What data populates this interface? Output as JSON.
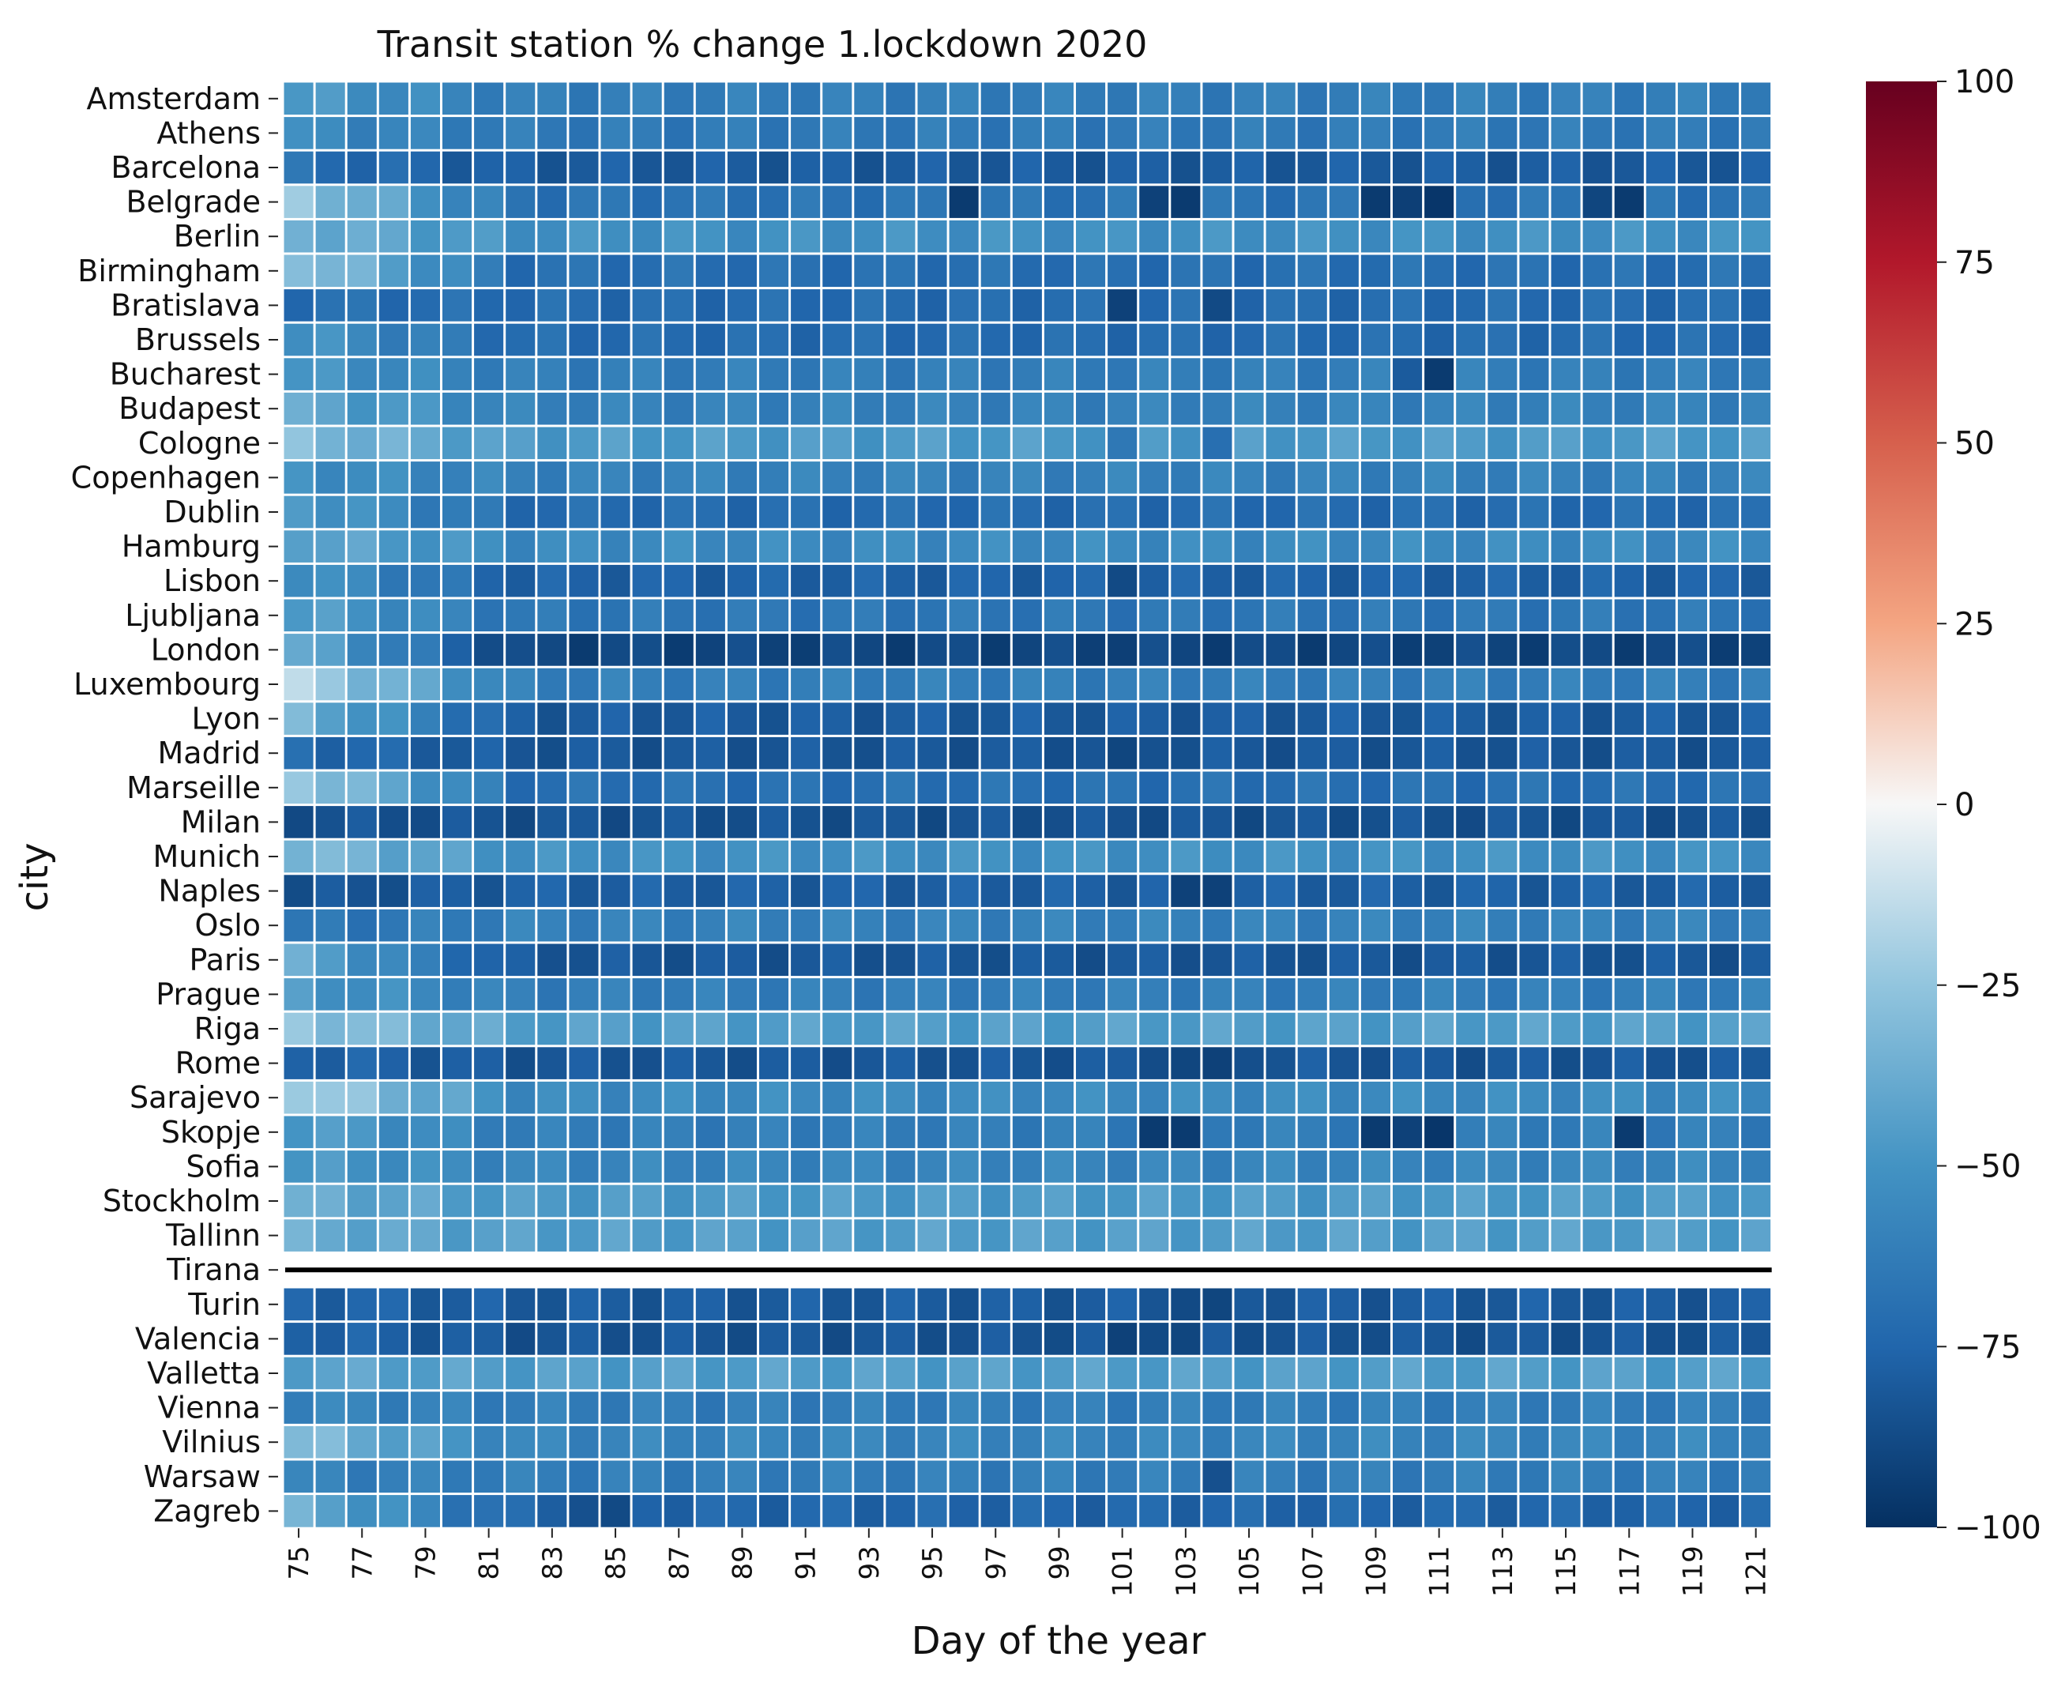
{
  "chart_data": {
    "type": "heatmap",
    "title": "Transit station % change 1.lockdown 2020",
    "xlabel": "Day of the year",
    "ylabel": "city",
    "days": [
      75,
      76,
      77,
      78,
      79,
      80,
      81,
      82,
      83,
      84,
      85,
      86,
      87,
      88,
      89,
      90,
      91,
      92,
      93,
      94,
      95,
      96,
      97,
      98,
      99,
      100,
      101,
      102,
      103,
      104,
      105,
      106,
      107,
      108,
      109,
      110,
      111,
      112,
      113,
      114,
      115,
      116,
      117,
      118,
      119,
      120,
      121
    ],
    "x_tick_labels": [
      "75",
      "77",
      "79",
      "81",
      "83",
      "85",
      "87",
      "89",
      "91",
      "93",
      "95",
      "97",
      "99",
      "101",
      "103",
      "105",
      "107",
      "109",
      "111",
      "113",
      "115",
      "117",
      "119",
      "121"
    ],
    "colorbar": {
      "min": -100,
      "max": 100,
      "ticks": [
        "100",
        "75",
        "50",
        "25",
        "0",
        "−25",
        "−50",
        "−75",
        "−100"
      ],
      "colormap": "RdBu_r"
    },
    "cities": [
      {
        "name": "Amsterdam",
        "base": -62,
        "start": -48
      },
      {
        "name": "Athens",
        "base": -64,
        "start": -55
      },
      {
        "name": "Barcelona",
        "base": -80,
        "start": -70
      },
      {
        "name": "Belgrade",
        "base": -68,
        "start": -25,
        "dips": {
          "96": -95,
          "102": -92,
          "103": -95,
          "109": -95,
          "110": -93,
          "111": -97,
          "116": -90,
          "117": -95
        }
      },
      {
        "name": "Berlin",
        "base": -52,
        "start": -35
      },
      {
        "name": "Birmingham",
        "base": -70,
        "start": -25
      },
      {
        "name": "Bratislava",
        "base": -72,
        "start": -70,
        "dips": {
          "101": -92,
          "104": -88
        }
      },
      {
        "name": "Brussels",
        "base": -72,
        "start": -50
      },
      {
        "name": "Bucharest",
        "base": -62,
        "start": -50,
        "dips": {
          "110": -80,
          "111": -95
        }
      },
      {
        "name": "Budapest",
        "base": -60,
        "start": -40
      },
      {
        "name": "Cologne",
        "base": -47,
        "start": -30,
        "dips": {
          "101": -65,
          "104": -70
        }
      },
      {
        "name": "Copenhagen",
        "base": -60,
        "start": -52
      },
      {
        "name": "Dublin",
        "base": -72,
        "start": -45
      },
      {
        "name": "Hamburg",
        "base": -55,
        "start": -40
      },
      {
        "name": "Lisbon",
        "base": -77,
        "start": -50,
        "dips": {
          "101": -88
        }
      },
      {
        "name": "Ljubljana",
        "base": -66,
        "start": -45
      },
      {
        "name": "London",
        "base": -90,
        "start": -40
      },
      {
        "name": "Luxembourg",
        "base": -62,
        "start": -18
      },
      {
        "name": "Lyon",
        "base": -80,
        "start": -35
      },
      {
        "name": "Madrid",
        "base": -82,
        "start": -72,
        "dips": {
          "101": -90
        }
      },
      {
        "name": "Marseille",
        "base": -70,
        "start": -22
      },
      {
        "name": "Milan",
        "base": -84,
        "start": -84
      },
      {
        "name": "Munich",
        "base": -52,
        "start": -30
      },
      {
        "name": "Naples",
        "base": -78,
        "start": -85,
        "dips": {
          "103": -92,
          "104": -92
        }
      },
      {
        "name": "Oslo",
        "base": -60,
        "start": -68
      },
      {
        "name": "Paris",
        "base": -82,
        "start": -40
      },
      {
        "name": "Prague",
        "base": -62,
        "start": -48
      },
      {
        "name": "Riga",
        "base": -45,
        "start": -25
      },
      {
        "name": "Rome",
        "base": -82,
        "start": -75,
        "dips": {
          "103": -90,
          "104": -92
        }
      },
      {
        "name": "Sarajevo",
        "base": -55,
        "start": -18
      },
      {
        "name": "Skopje",
        "base": -62,
        "start": -45,
        "dips": {
          "102": -95,
          "103": -95,
          "109": -95,
          "110": -92,
          "111": -97,
          "117": -95
        }
      },
      {
        "name": "Sofia",
        "base": -58,
        "start": -48
      },
      {
        "name": "Stockholm",
        "base": -47,
        "start": -38
      },
      {
        "name": "Tallinn",
        "base": -45,
        "start": -38
      },
      {
        "name": "Tirana",
        "base": null,
        "start": null
      },
      {
        "name": "Turin",
        "base": -80,
        "start": -75,
        "dips": {
          "103": -88,
          "104": -90
        }
      },
      {
        "name": "Valencia",
        "base": -83,
        "start": -75,
        "dips": {
          "101": -92,
          "103": -90
        }
      },
      {
        "name": "Valletta",
        "base": -45,
        "start": -42
      },
      {
        "name": "Vienna",
        "base": -62,
        "start": -58
      },
      {
        "name": "Vilnius",
        "base": -58,
        "start": -30
      },
      {
        "name": "Warsaw",
        "base": -62,
        "start": -60,
        "dips": {
          "104": -85
        }
      },
      {
        "name": "Zagreb",
        "base": -75,
        "start": -38,
        "dips": {
          "84": -85,
          "85": -88
        }
      }
    ]
  }
}
